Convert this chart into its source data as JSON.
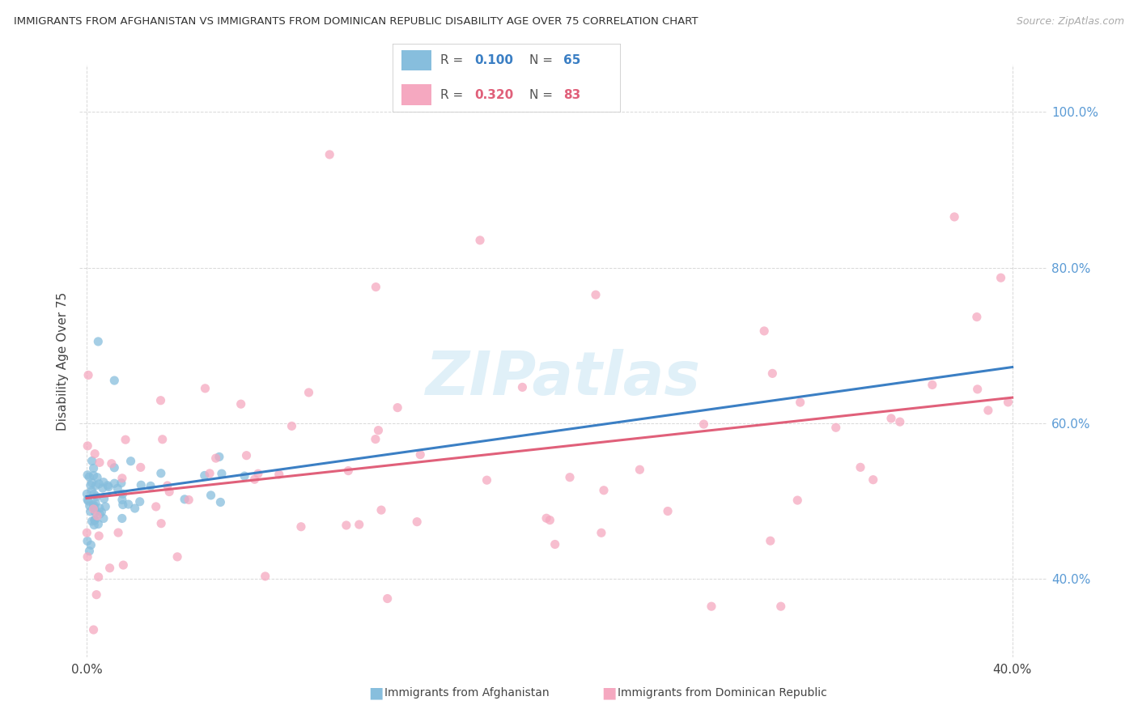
{
  "title": "IMMIGRANTS FROM AFGHANISTAN VS IMMIGRANTS FROM DOMINICAN REPUBLIC DISABILITY AGE OVER 75 CORRELATION CHART",
  "source": "Source: ZipAtlas.com",
  "ylabel": "Disability Age Over 75",
  "afg_label": "Immigrants from Afghanistan",
  "dom_label": "Immigrants from Dominican Republic",
  "afg_R": 0.1,
  "afg_N": 65,
  "dom_R": 0.32,
  "dom_N": 83,
  "afg_color": "#87BEDD",
  "dom_color": "#F5A8C0",
  "afg_line_color": "#3B7FC4",
  "dom_line_color": "#E0607A",
  "background_color": "#ffffff",
  "grid_color": "#d8d8d8",
  "right_tick_color": "#5B9BD5",
  "xlim_min": -0.003,
  "xlim_max": 0.415,
  "ylim_min": 0.3,
  "ylim_max": 1.06,
  "x_ticks": [
    0.0,
    0.4
  ],
  "x_tick_labels": [
    "0.0%",
    "40.0%"
  ],
  "y_ticks": [
    0.4,
    0.6,
    0.8,
    1.0
  ],
  "y_tick_labels": [
    "40.0%",
    "60.0%",
    "80.0%",
    "100.0%"
  ],
  "watermark": "ZIPatlas"
}
